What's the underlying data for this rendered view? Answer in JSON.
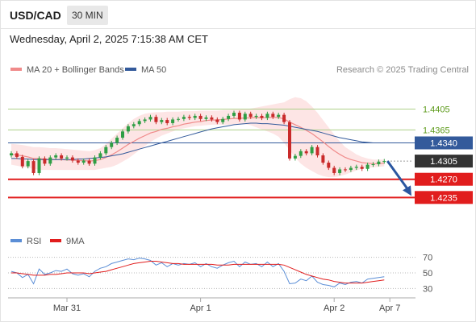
{
  "header": {
    "pair": "USD/CAD",
    "timeframe": "30 MIN",
    "datetime": "Wednesday, April 2, 2025 7:15:38 AM CET"
  },
  "legend": {
    "ma20": "MA 20 + Bollinger Bands",
    "ma50": "MA 50",
    "research": "Research © 2025 Trading Central",
    "rsi": "RSI",
    "rsi_ma": "9MA"
  },
  "colors": {
    "ma20": "#f08a8a",
    "ma50": "#335a9b",
    "bands": "#fde0e0",
    "bull": "#2f9e44",
    "bear": "#c92a2a",
    "resistance": "#aed08a",
    "pivot": "#335a9b",
    "support": "#e11d1d",
    "current": "#333333",
    "arrow": "#2a56a0",
    "rsi": "#5b8ed6",
    "rsi_ma": "#e11d1d"
  },
  "chart_data": [
    {
      "type": "candlestick",
      "ylim": [
        1.4172,
        1.446
      ],
      "price_levels": [
        {
          "value": 1.4405,
          "label": "1.4405",
          "kind": "resistance"
        },
        {
          "value": 1.4365,
          "label": "1.4365",
          "kind": "resistance"
        },
        {
          "value": 1.434,
          "label": "1.4340",
          "kind": "pivot"
        },
        {
          "value": 1.4305,
          "label": "1.4305",
          "kind": "current"
        },
        {
          "value": 1.427,
          "label": "1.4270",
          "kind": "support"
        },
        {
          "value": 1.4235,
          "label": "1.4235",
          "kind": "support"
        }
      ],
      "x_ticks": [
        {
          "index": 10,
          "label": "Mar 31"
        },
        {
          "index": 34,
          "label": "Apr 1"
        },
        {
          "index": 58,
          "label": "Apr 2"
        },
        {
          "index": 68,
          "label": "Apr 7"
        }
      ],
      "close": [
        1.432,
        1.4313,
        1.4295,
        1.4305,
        1.4282,
        1.431,
        1.43,
        1.4312,
        1.4316,
        1.431,
        1.4312,
        1.4306,
        1.4302,
        1.4306,
        1.43,
        1.4312,
        1.432,
        1.4332,
        1.434,
        1.435,
        1.4362,
        1.4372,
        1.4376,
        1.4382,
        1.4385,
        1.439,
        1.438,
        1.4384,
        1.4378,
        1.4385,
        1.4386,
        1.439,
        1.4388,
        1.4392,
        1.4386,
        1.4389,
        1.4385,
        1.438,
        1.4386,
        1.4392,
        1.4398,
        1.4385,
        1.4396,
        1.439,
        1.4392,
        1.4388,
        1.4396,
        1.439,
        1.4394,
        1.438,
        1.431,
        1.4315,
        1.4324,
        1.432,
        1.4332,
        1.4316,
        1.4302,
        1.4292,
        1.4282,
        1.4289,
        1.4288,
        1.4292,
        1.4294,
        1.429,
        1.4298,
        1.4299,
        1.4304,
        1.4305
      ],
      "ma20": [
        1.4318,
        1.4317,
        1.4315,
        1.4313,
        1.431,
        1.431,
        1.4309,
        1.4308,
        1.4308,
        1.4308,
        1.4307,
        1.4307,
        1.4306,
        1.4306,
        1.4305,
        1.4306,
        1.4308,
        1.4312,
        1.4317,
        1.4323,
        1.433,
        1.4337,
        1.4343,
        1.4349,
        1.4354,
        1.4359,
        1.4362,
        1.4366,
        1.4368,
        1.4371,
        1.4373,
        1.4376,
        1.4378,
        1.438,
        1.4381,
        1.4383,
        1.4384,
        1.4384,
        1.4385,
        1.4386,
        1.4387,
        1.4387,
        1.4388,
        1.4388,
        1.4389,
        1.4388,
        1.4389,
        1.4389,
        1.4389,
        1.4386,
        1.438,
        1.4375,
        1.437,
        1.4364,
        1.4358,
        1.435,
        1.4342,
        1.4333,
        1.4325,
        1.4318,
        1.4312,
        1.4308,
        1.4305,
        1.4302,
        1.4301,
        1.43,
        1.43,
        1.4301
      ],
      "band_upper": [
        1.4338,
        1.4337,
        1.4336,
        1.4334,
        1.4332,
        1.4332,
        1.4331,
        1.433,
        1.433,
        1.4329,
        1.4328,
        1.4327,
        1.4326,
        1.4325,
        1.4324,
        1.4326,
        1.433,
        1.4338,
        1.4348,
        1.4358,
        1.4368,
        1.4378,
        1.4386,
        1.4392,
        1.4396,
        1.4398,
        1.4399,
        1.4399,
        1.44,
        1.44,
        1.44,
        1.4401,
        1.4401,
        1.4401,
        1.4402,
        1.4402,
        1.4402,
        1.4402,
        1.4403,
        1.4403,
        1.4404,
        1.4404,
        1.4405,
        1.4406,
        1.4408,
        1.441,
        1.4412,
        1.4414,
        1.4416,
        1.4418,
        1.4424,
        1.4428,
        1.4426,
        1.442,
        1.441,
        1.4398,
        1.4384,
        1.437,
        1.4356,
        1.4343,
        1.4332,
        1.4325,
        1.4318,
        1.4313,
        1.431,
        1.4308,
        1.4308,
        1.4308
      ],
      "band_lower": [
        1.4298,
        1.4296,
        1.4294,
        1.4292,
        1.429,
        1.4288,
        1.4288,
        1.4288,
        1.4288,
        1.4288,
        1.4288,
        1.4288,
        1.4288,
        1.4288,
        1.4288,
        1.4288,
        1.429,
        1.4292,
        1.4294,
        1.4298,
        1.4304,
        1.431,
        1.4318,
        1.4326,
        1.4334,
        1.4342,
        1.4348,
        1.4354,
        1.4358,
        1.4362,
        1.4366,
        1.4368,
        1.437,
        1.4372,
        1.4373,
        1.4374,
        1.4375,
        1.4375,
        1.4375,
        1.4375,
        1.4376,
        1.4376,
        1.4376,
        1.4374,
        1.437,
        1.4366,
        1.4362,
        1.4358,
        1.4352,
        1.434,
        1.4326,
        1.4312,
        1.43,
        1.4292,
        1.4286,
        1.428,
        1.4276,
        1.4274,
        1.4274,
        1.4276,
        1.4279,
        1.4283,
        1.4287,
        1.429,
        1.4292,
        1.4293,
        1.4294,
        1.4295
      ],
      "ma50": [
        1.431,
        1.431,
        1.4309,
        1.4309,
        1.4308,
        1.4308,
        1.4308,
        1.4308,
        1.4308,
        1.4308,
        1.4308,
        1.4308,
        1.4309,
        1.4309,
        1.431,
        1.4311,
        1.4312,
        1.4313,
        1.4315,
        1.4317,
        1.4319,
        1.4322,
        1.4325,
        1.4328,
        1.4331,
        1.4334,
        1.4337,
        1.434,
        1.4343,
        1.4346,
        1.4349,
        1.4352,
        1.4355,
        1.4358,
        1.4361,
        1.4364,
        1.4367,
        1.4369,
        1.4371,
        1.4373,
        1.4375,
        1.4376,
        1.4377,
        1.4378,
        1.4378,
        1.4377,
        1.4377,
        1.4376,
        1.4375,
        1.4374,
        1.4372,
        1.437,
        1.4368,
        1.4366,
        1.4364,
        1.4362,
        1.4359,
        1.4356,
        1.4353,
        1.435,
        1.4348,
        1.4346,
        1.4344,
        1.4342,
        1.4341,
        1.434,
        1.434,
        1.434
      ],
      "forecast": {
        "from": 1.4305,
        "to": 1.4235
      }
    },
    {
      "type": "line",
      "title": "RSI",
      "ylim": [
        20,
        80
      ],
      "y_ticks": [
        70,
        50,
        30
      ],
      "rsi": [
        52,
        50,
        44,
        48,
        36,
        55,
        48,
        50,
        53,
        52,
        55,
        49,
        47,
        49,
        45,
        52,
        56,
        58,
        62,
        64,
        66,
        68,
        67,
        69,
        68,
        66,
        60,
        63,
        58,
        62,
        60,
        62,
        61,
        63,
        58,
        62,
        58,
        56,
        60,
        63,
        65,
        58,
        64,
        61,
        62,
        58,
        64,
        58,
        62,
        52,
        36,
        37,
        42,
        40,
        46,
        38,
        35,
        34,
        32,
        37,
        35,
        38,
        39,
        37,
        42,
        43,
        44,
        45
      ],
      "rsi_ma": [
        50,
        50,
        49,
        48,
        47,
        47,
        47,
        48,
        48,
        49,
        50,
        50,
        50,
        50,
        49,
        50,
        51,
        52,
        54,
        56,
        58,
        60,
        62,
        63,
        64,
        65,
        65,
        64,
        63,
        62,
        62,
        61,
        61,
        61,
        61,
        61,
        61,
        60,
        60,
        60,
        61,
        61,
        61,
        61,
        61,
        61,
        61,
        61,
        61,
        60,
        57,
        54,
        51,
        48,
        46,
        44,
        42,
        41,
        39,
        38,
        37,
        37,
        37,
        37,
        38,
        39,
        40,
        41
      ]
    }
  ]
}
